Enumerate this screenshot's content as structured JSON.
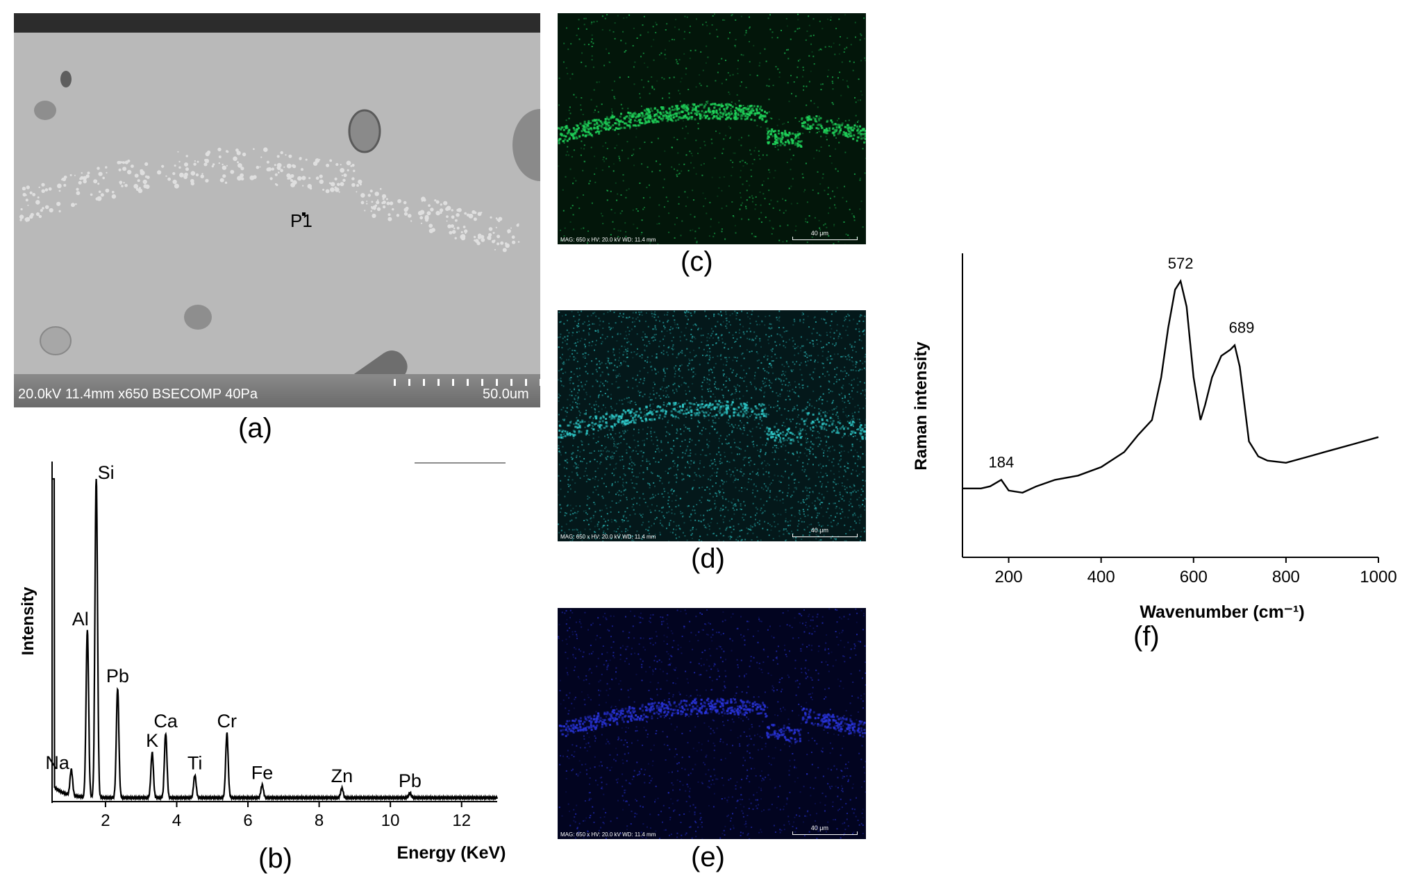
{
  "panels": {
    "a": {
      "label": "(a)",
      "info": "20.0kV 11.4mm x650 BSECOMP 40Pa",
      "scale": "50.0um",
      "point": "P1"
    },
    "b": {
      "label": "(b)"
    },
    "c": {
      "label": "(c)",
      "caption": "MAG: 650 x  HV: 20.0 kV  WD: 11.4 mm",
      "scale": "40 μm",
      "color": "#1fd35a"
    },
    "d": {
      "label": "(d)",
      "caption": "MAG: 650 x  HV: 20.0 kV  WD: 11.4 mm",
      "scale": "40 μm",
      "color": "#2ec8c8"
    },
    "e": {
      "label": "(e)",
      "caption": "MAG: 650 x  HV: 20.0 kV  WD: 11.4 mm",
      "scale": "40 μm",
      "color": "#2833d8"
    },
    "f": {
      "label": "(f)"
    }
  },
  "chart_data": [
    {
      "type": "line",
      "panel": "b",
      "title": "",
      "xlabel": "Energy (KeV)",
      "ylabel": "Intensity",
      "xlim": [
        0.5,
        13
      ],
      "ylim": [
        0,
        100
      ],
      "xticks": [
        2,
        4,
        6,
        8,
        10,
        12
      ],
      "peaks": [
        {
          "label": "Na",
          "x": 1.04,
          "y": 8
        },
        {
          "label": "Al",
          "x": 1.49,
          "y": 52
        },
        {
          "label": "Si",
          "x": 1.74,
          "y": 100
        },
        {
          "label": "Pb",
          "x": 2.34,
          "y": 34
        },
        {
          "label": "K",
          "x": 3.31,
          "y": 14
        },
        {
          "label": "Ca",
          "x": 3.69,
          "y": 20
        },
        {
          "label": "Ti",
          "x": 4.51,
          "y": 7
        },
        {
          "label": "Cr",
          "x": 5.41,
          "y": 20
        },
        {
          "label": "Fe",
          "x": 6.4,
          "y": 4
        },
        {
          "label": "Zn",
          "x": 8.64,
          "y": 3
        },
        {
          "label": "Pb",
          "x": 10.55,
          "y": 1.5
        }
      ],
      "grid": false
    },
    {
      "type": "line",
      "panel": "f",
      "title": "",
      "xlabel": "Wavenumber (cm⁻¹)",
      "ylabel": "Raman intensity",
      "xlim": [
        100,
        1000
      ],
      "ylim": [
        0,
        100
      ],
      "xticks": [
        200,
        400,
        600,
        800,
        1000
      ],
      "x": [
        100,
        140,
        160,
        184,
        200,
        230,
        260,
        300,
        350,
        400,
        450,
        480,
        510,
        530,
        545,
        560,
        572,
        585,
        600,
        615,
        625,
        640,
        660,
        680,
        689,
        700,
        720,
        740,
        760,
        800,
        850,
        900,
        950,
        1000
      ],
      "y": [
        3,
        3,
        4,
        7,
        2,
        1,
        4,
        7,
        9,
        13,
        20,
        28,
        35,
        55,
        78,
        96,
        100,
        88,
        55,
        35,
        42,
        55,
        65,
        68,
        70,
        60,
        25,
        18,
        16,
        15,
        18,
        21,
        24,
        27
      ],
      "annotations": [
        {
          "label": "184",
          "x": 184
        },
        {
          "label": "572",
          "x": 572
        },
        {
          "label": "689",
          "x": 689
        }
      ],
      "grid": false
    }
  ]
}
